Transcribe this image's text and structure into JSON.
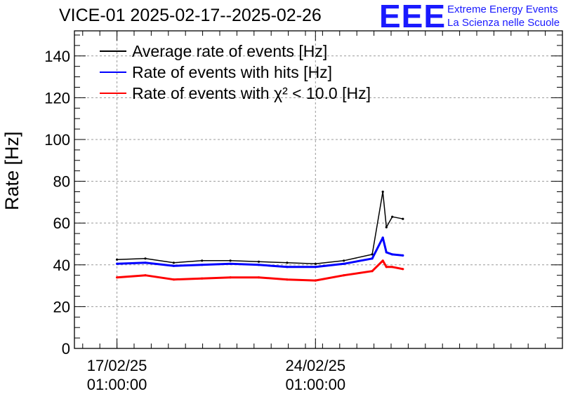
{
  "title": "VICE-01 2025-02-17--2025-02-26",
  "logo": {
    "mark": "EEE",
    "line1": "Extreme Energy Events",
    "line2": "La Scienza nelle Scuole"
  },
  "colors": {
    "logo": "#1a1aff",
    "avg": "#000000",
    "hits": "#0000ff",
    "chi2": "#ff0000",
    "grid": "#999999"
  },
  "chart_data": {
    "type": "line",
    "title": "VICE-01 2025-02-17--2025-02-26",
    "ylabel": "Rate [Hz]",
    "xlabel": "",
    "ylim": [
      0,
      152
    ],
    "xlim": [
      "2025-02-15 13:00",
      "2025-03-04 18:00"
    ],
    "grid": true,
    "legend_position": "top-left",
    "x_ticks": [
      {
        "date": "2025-02-17 01:00",
        "line1": "17/02/25",
        "line2": "01:00:00"
      },
      {
        "date": "2025-02-24 01:00",
        "line1": "24/02/25",
        "line2": "01:00:00"
      }
    ],
    "y_ticks": [
      0,
      20,
      40,
      60,
      80,
      100,
      120,
      140
    ],
    "x": [
      "2025-02-17 01:00",
      "2025-02-18 01:00",
      "2025-02-19 01:00",
      "2025-02-20 01:00",
      "2025-02-21 01:00",
      "2025-02-22 01:00",
      "2025-02-23 01:00",
      "2025-02-24 01:00",
      "2025-02-25 01:00",
      "2025-02-26 01:00",
      "2025-02-26 10:00",
      "2025-02-26 13:00",
      "2025-02-26 18:00",
      "2025-02-27 03:00"
    ],
    "series": [
      {
        "name": "Average rate of events [Hz]",
        "color": "#000000",
        "values": [
          42.5,
          43,
          41,
          42,
          42,
          41.5,
          41,
          40.5,
          42,
          45,
          75,
          58,
          63,
          62
        ]
      },
      {
        "name": "Rate of events with hits [Hz]",
        "color": "#0000ff",
        "values": [
          40.5,
          41,
          39.5,
          40,
          40.5,
          40,
          39,
          39,
          40.5,
          43,
          53,
          46,
          45,
          44.5
        ]
      },
      {
        "name": "Rate of events with χ² < 10.0 [Hz]",
        "color": "#ff0000",
        "values": [
          34,
          35,
          33,
          33.5,
          34,
          34,
          33,
          32.5,
          35,
          37,
          42,
          39,
          39,
          38
        ]
      }
    ]
  }
}
